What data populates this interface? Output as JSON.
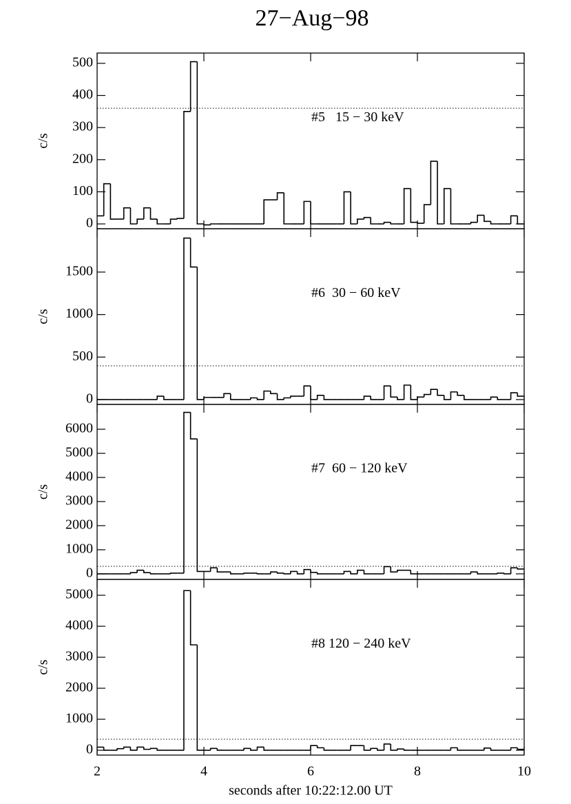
{
  "title": "27−Aug−98",
  "chart_data": [
    {
      "type": "histogram",
      "label": "#5   15 − 30 keV",
      "ylabel": "c/s",
      "color": "#000000",
      "bins": [
        2,
        2.125,
        2.25,
        2.375,
        2.5,
        2.625,
        2.75,
        2.875,
        3,
        3.125,
        3.25,
        3.375,
        3.5,
        3.625,
        3.75,
        3.875,
        4,
        4.125,
        4.25,
        4.375,
        4.5,
        4.625,
        4.75,
        4.875,
        5,
        5.125,
        5.25,
        5.375,
        5.5,
        5.625,
        5.75,
        5.875,
        6,
        6.125,
        6.25,
        6.375,
        6.5,
        6.625,
        6.75,
        6.875,
        7,
        7.125,
        7.25,
        7.375,
        7.5,
        7.625,
        7.75,
        7.875,
        8,
        8.125,
        8.25,
        8.375,
        8.5,
        8.625,
        8.75,
        8.875,
        9,
        9.125,
        9.25,
        9.375,
        9.5,
        9.625,
        9.75,
        9.875,
        10
      ],
      "values": [
        25,
        125,
        15,
        15,
        50,
        0,
        15,
        50,
        15,
        0,
        0,
        15,
        17,
        350,
        505,
        0,
        -3,
        0,
        0,
        0,
        0,
        0,
        0,
        0,
        0,
        75,
        75,
        97,
        0,
        0,
        0,
        70,
        0,
        0,
        0,
        0,
        0,
        100,
        0,
        15,
        20,
        0,
        0,
        5,
        0,
        0,
        110,
        5,
        2,
        60,
        195,
        0,
        110,
        0,
        0,
        0,
        5,
        27,
        8,
        0,
        0,
        0,
        25,
        0
      ],
      "threshold": 360,
      "xlim": [
        2,
        10
      ],
      "ylim": [
        -15,
        532
      ],
      "yticks": [
        0,
        100,
        200,
        300,
        400,
        500
      ]
    },
    {
      "type": "histogram",
      "label": "#6  30 − 60 keV",
      "ylabel": "c/s",
      "color": "#000000",
      "bins": [
        2,
        2.125,
        2.25,
        2.375,
        2.5,
        2.625,
        2.75,
        2.875,
        3,
        3.125,
        3.25,
        3.375,
        3.5,
        3.625,
        3.75,
        3.875,
        4,
        4.125,
        4.25,
        4.375,
        4.5,
        4.625,
        4.75,
        4.875,
        5,
        5.125,
        5.25,
        5.375,
        5.5,
        5.625,
        5.75,
        5.875,
        6,
        6.125,
        6.25,
        6.375,
        6.5,
        6.625,
        6.75,
        6.875,
        7,
        7.125,
        7.25,
        7.375,
        7.5,
        7.625,
        7.75,
        7.875,
        8,
        8.125,
        8.25,
        8.375,
        8.5,
        8.625,
        8.75,
        8.875,
        9,
        9.125,
        9.25,
        9.375,
        9.5,
        9.625,
        9.75,
        9.875,
        10
      ],
      "values": [
        0,
        0,
        0,
        0,
        0,
        0,
        0,
        0,
        0,
        40,
        0,
        0,
        0,
        1900,
        1560,
        0,
        25,
        25,
        25,
        70,
        0,
        0,
        0,
        20,
        0,
        100,
        70,
        0,
        20,
        40,
        40,
        160,
        0,
        50,
        0,
        0,
        0,
        0,
        0,
        0,
        40,
        0,
        0,
        160,
        30,
        0,
        170,
        0,
        30,
        60,
        120,
        50,
        0,
        90,
        50,
        0,
        0,
        0,
        0,
        30,
        0,
        0,
        80,
        40
      ],
      "threshold": 397,
      "xlim": [
        2,
        10
      ],
      "ylim": [
        -57,
        2010
      ],
      "yticks": [
        0,
        500,
        1000,
        1500
      ]
    },
    {
      "type": "histogram",
      "label": "#7  60 − 120 keV",
      "ylabel": "c/s",
      "color": "#000000",
      "bins": [
        2,
        2.125,
        2.25,
        2.375,
        2.5,
        2.625,
        2.75,
        2.875,
        3,
        3.125,
        3.25,
        3.375,
        3.5,
        3.625,
        3.75,
        3.875,
        4,
        4.125,
        4.25,
        4.375,
        4.5,
        4.625,
        4.75,
        4.875,
        5,
        5.125,
        5.25,
        5.375,
        5.5,
        5.625,
        5.75,
        5.875,
        6,
        6.125,
        6.25,
        6.375,
        6.5,
        6.625,
        6.75,
        6.875,
        7,
        7.125,
        7.25,
        7.375,
        7.5,
        7.625,
        7.75,
        7.875,
        8,
        8.125,
        8.25,
        8.375,
        8.5,
        8.625,
        8.75,
        8.875,
        9,
        9.125,
        9.25,
        9.375,
        9.5,
        9.625,
        9.75,
        9.875,
        10
      ],
      "values": [
        0,
        0,
        0,
        0,
        0,
        50,
        150,
        50,
        0,
        0,
        0,
        30,
        30,
        6700,
        5600,
        100,
        100,
        250,
        80,
        80,
        0,
        0,
        30,
        30,
        0,
        0,
        80,
        30,
        0,
        100,
        0,
        180,
        60,
        0,
        0,
        0,
        0,
        100,
        0,
        150,
        0,
        0,
        0,
        300,
        80,
        150,
        150,
        0,
        0,
        0,
        0,
        0,
        0,
        0,
        0,
        0,
        80,
        0,
        0,
        0,
        30,
        0,
        250,
        200
      ],
      "threshold": 314,
      "xlim": [
        2,
        10
      ],
      "ylim": [
        -230,
        7030
      ],
      "yticks": [
        0,
        1000,
        2000,
        3000,
        4000,
        5000,
        6000
      ]
    },
    {
      "type": "histogram",
      "label": "#8 120 − 240 keV",
      "ylabel": "c/s",
      "color": "#000000",
      "xlabel": "seconds after 10:22:12.00 UT",
      "bins": [
        2,
        2.125,
        2.25,
        2.375,
        2.5,
        2.625,
        2.75,
        2.875,
        3,
        3.125,
        3.25,
        3.375,
        3.5,
        3.625,
        3.75,
        3.875,
        4,
        4.125,
        4.25,
        4.375,
        4.5,
        4.625,
        4.75,
        4.875,
        5,
        5.125,
        5.25,
        5.375,
        5.5,
        5.625,
        5.75,
        5.875,
        6,
        6.125,
        6.25,
        6.375,
        6.5,
        6.625,
        6.75,
        6.875,
        7,
        7.125,
        7.25,
        7.375,
        7.5,
        7.625,
        7.75,
        7.875,
        8,
        8.125,
        8.25,
        8.375,
        8.5,
        8.625,
        8.75,
        8.875,
        9,
        9.125,
        9.25,
        9.375,
        9.5,
        9.625,
        9.75,
        9.875,
        10
      ],
      "values": [
        100,
        0,
        0,
        50,
        100,
        0,
        100,
        30,
        60,
        0,
        0,
        0,
        0,
        5150,
        3400,
        0,
        0,
        60,
        0,
        0,
        0,
        0,
        60,
        0,
        100,
        0,
        0,
        0,
        0,
        0,
        0,
        0,
        150,
        80,
        0,
        0,
        0,
        0,
        150,
        150,
        0,
        60,
        0,
        200,
        0,
        40,
        0,
        0,
        0,
        0,
        0,
        0,
        0,
        80,
        0,
        0,
        0,
        0,
        70,
        0,
        0,
        0,
        80,
        30
      ],
      "threshold": 356,
      "xlim": [
        2,
        10
      ],
      "ylim": [
        -156,
        5511
      ],
      "yticks": [
        0,
        1000,
        2000,
        3000,
        4000,
        5000
      ],
      "xticks": [
        2,
        4,
        6,
        8,
        10
      ]
    }
  ]
}
